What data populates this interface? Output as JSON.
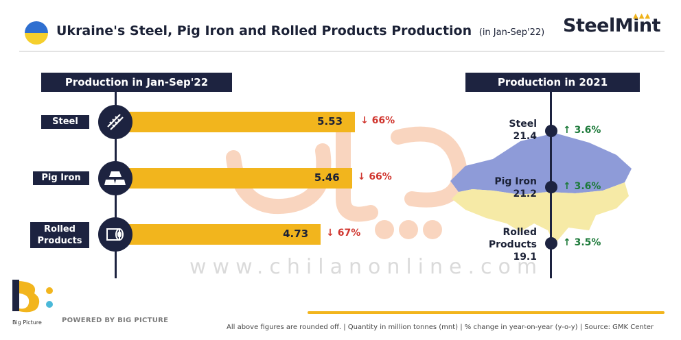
{
  "header": {
    "title": "Ukraine's Steel, Pig Iron and Rolled Products Production",
    "subtitle": "(in Jan-Sep'22)",
    "brand": "SteelMint"
  },
  "colors": {
    "navy": "#1d2340",
    "bar": "#f2b51d",
    "down": "#d0352e",
    "up": "#1d7a3a",
    "map_blue": "#8e9bd8",
    "map_yellow": "#f6eaa6"
  },
  "watermark": {
    "text": "www.chilanonline.com"
  },
  "chart_data": [
    {
      "type": "bar",
      "orientation": "horizontal",
      "title": "Production in Jan-Sep'22",
      "categories": [
        "Steel",
        "Pig Iron",
        "Rolled Products"
      ],
      "values": [
        5.53,
        5.46,
        4.73
      ],
      "value_labels": [
        "5.53",
        "5.46",
        "4.73"
      ],
      "changes": [
        "66%",
        "66%",
        "67%"
      ],
      "change_direction": [
        "down",
        "down",
        "down"
      ],
      "icons": [
        "steel-rebar-icon",
        "pig-iron-ingots-icon",
        "rolled-coil-icon"
      ]
    },
    {
      "type": "table",
      "title": "Production in 2021",
      "rows": [
        {
          "label": "Steel",
          "value": "21.4",
          "change": "3.6%",
          "direction": "up"
        },
        {
          "label": "Pig Iron",
          "value": "21.2",
          "change": "3.6%",
          "direction": "up"
        },
        {
          "label": "Rolled Products",
          "value": "19.1",
          "change": "3.5%",
          "direction": "up"
        }
      ]
    }
  ],
  "footer": {
    "brand_name": "Big Picture",
    "powered_by": "POWERED BY BIG PICTURE",
    "note": "All above figures are rounded off. | Quantity in million tonnes (mnt) | % change in year-on-year (y-o-y) | Source: GMK Center"
  }
}
